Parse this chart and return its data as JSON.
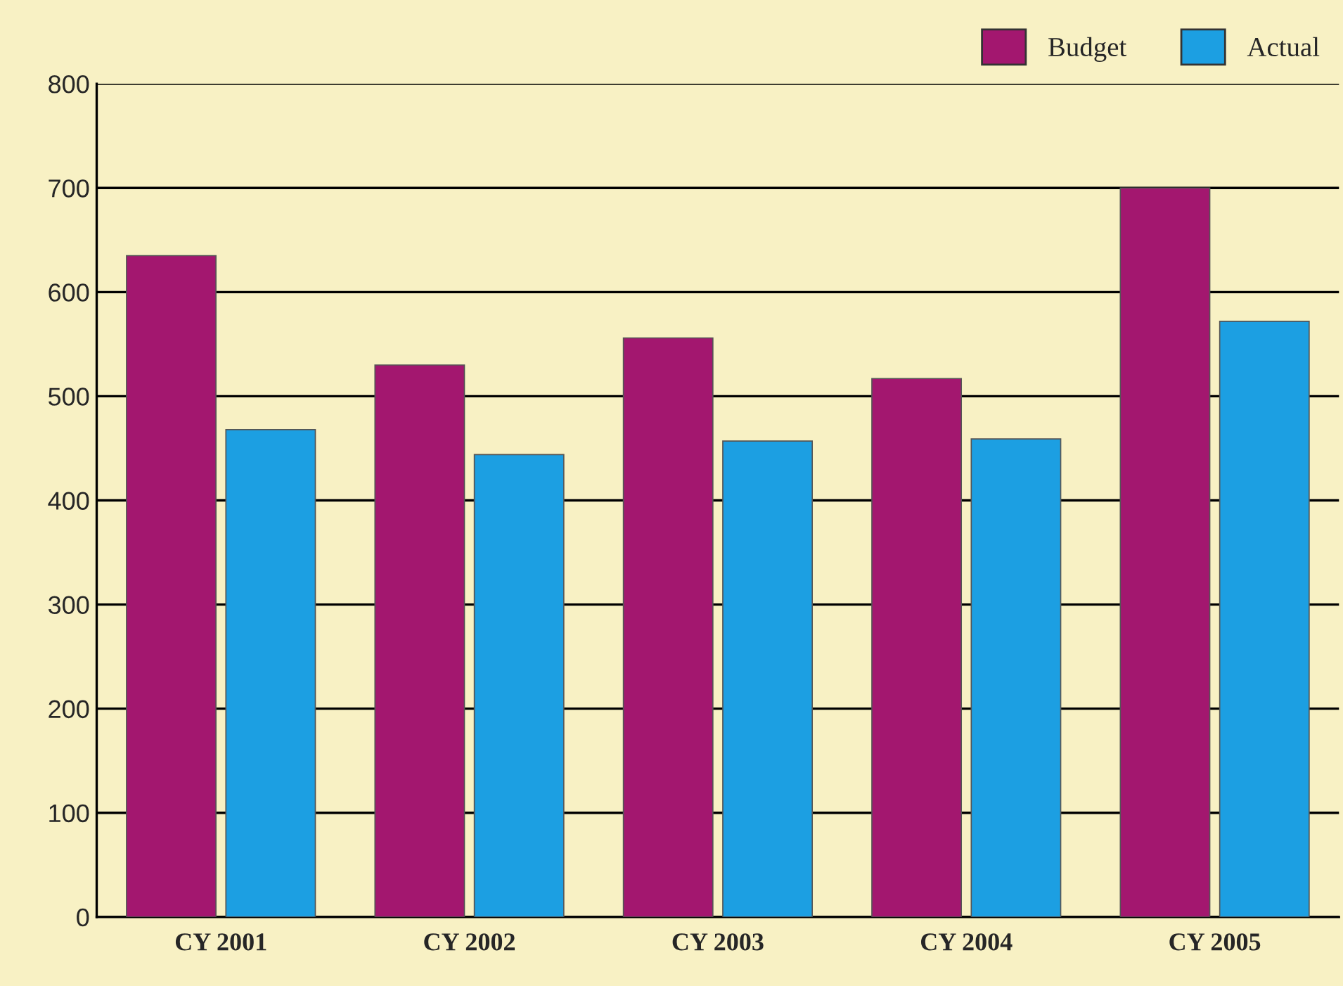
{
  "chart_data": {
    "type": "bar",
    "categories": [
      "CY 2001",
      "CY 2002",
      "CY 2003",
      "CY 2004",
      "CY 2005"
    ],
    "series": [
      {
        "name": "Budget",
        "color": "#a3176f",
        "values": [
          635,
          530,
          556,
          517,
          700
        ]
      },
      {
        "name": "Actual",
        "color": "#1c9fe2",
        "values": [
          468,
          444,
          457,
          459,
          572
        ]
      }
    ],
    "ylim": [
      0,
      800
    ],
    "yticks": [
      0,
      100,
      200,
      300,
      400,
      500,
      600,
      700,
      800
    ],
    "grid": "y",
    "legend": "top right"
  }
}
